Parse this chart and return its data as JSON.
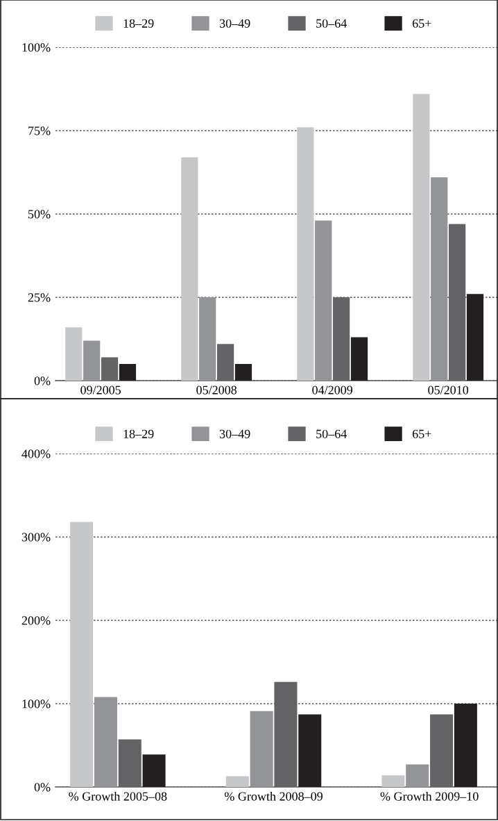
{
  "chart_data": [
    {
      "type": "bar",
      "categories": [
        "09/2005",
        "05/2008",
        "04/2009",
        "05/2010"
      ],
      "series": [
        {
          "name": "18–29",
          "color": "#c6c7c9",
          "values": [
            16,
            67,
            76,
            86
          ]
        },
        {
          "name": "30–49",
          "color": "#939497",
          "values": [
            12,
            25,
            48,
            61
          ]
        },
        {
          "name": "50–64",
          "color": "#636365",
          "values": [
            7,
            11,
            25,
            47
          ]
        },
        {
          "name": "65+",
          "color": "#231f20",
          "values": [
            5,
            5,
            13,
            26
          ]
        }
      ],
      "ylim": [
        0,
        100
      ],
      "yticks": [
        {
          "value": 0,
          "label": "0%"
        },
        {
          "value": 25,
          "label": "25%"
        },
        {
          "value": 50,
          "label": "50%"
        },
        {
          "value": 75,
          "label": "75%"
        },
        {
          "value": 100,
          "label": "100%"
        }
      ],
      "grid": "y",
      "legend": "top"
    },
    {
      "type": "bar",
      "categories": [
        "% Growth 2005–08",
        "% Growth 2008–09",
        "% Growth 2009–10"
      ],
      "series": [
        {
          "name": "18–29",
          "color": "#c6c7c9",
          "values": [
            318,
            13,
            14
          ]
        },
        {
          "name": "30–49",
          "color": "#939497",
          "values": [
            108,
            91,
            27
          ]
        },
        {
          "name": "50–64",
          "color": "#636365",
          "values": [
            57,
            126,
            87
          ]
        },
        {
          "name": "65+",
          "color": "#231f20",
          "values": [
            39,
            87,
            100
          ]
        }
      ],
      "ylim": [
        0,
        400
      ],
      "yticks": [
        {
          "value": 0,
          "label": "0%"
        },
        {
          "value": 100,
          "label": "100%"
        },
        {
          "value": 200,
          "label": "200%"
        },
        {
          "value": 300,
          "label": "300%"
        },
        {
          "value": 400,
          "label": "400%"
        }
      ],
      "grid": "y",
      "legend": "top"
    }
  ]
}
